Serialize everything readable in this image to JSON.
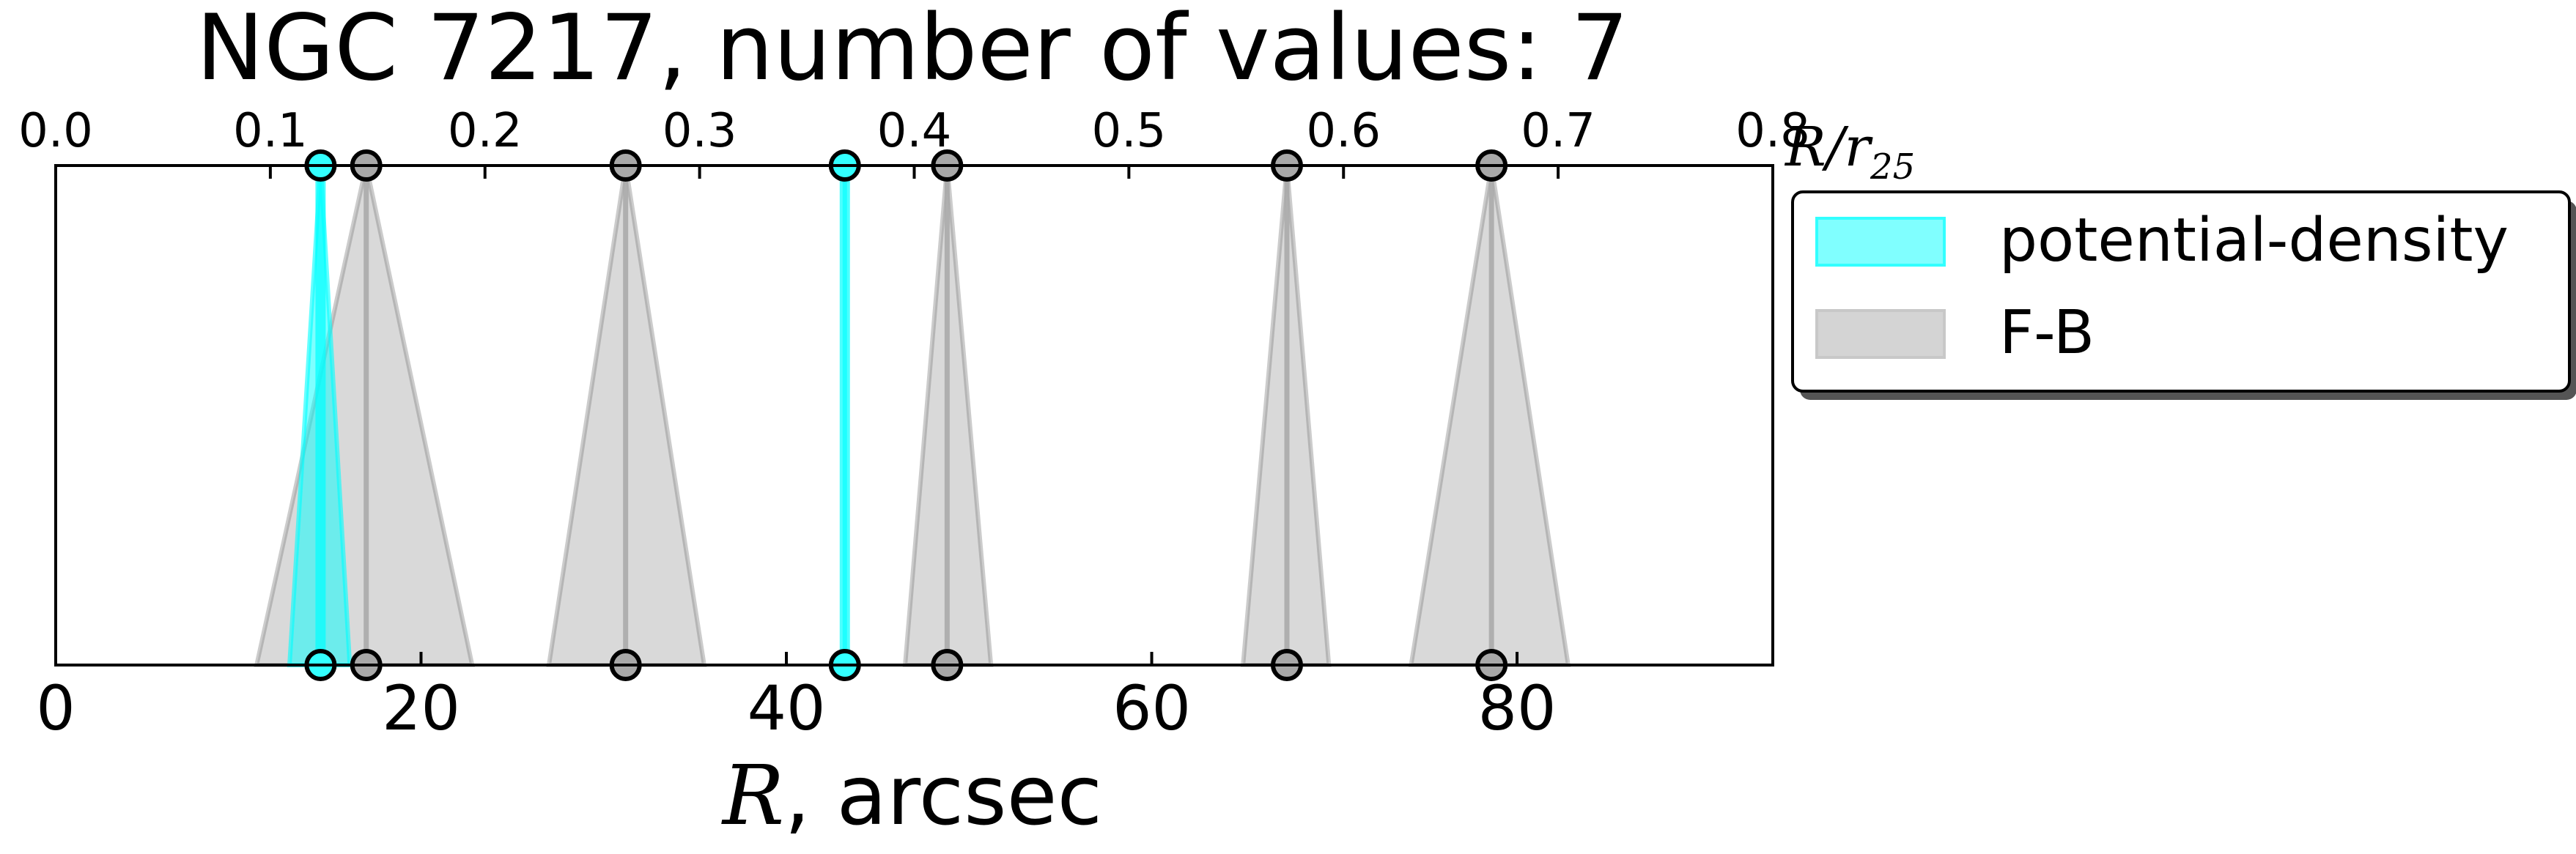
{
  "chart_data": {
    "type": "interval-markers",
    "title": "NGC 7217, number of values: 7",
    "xlabel_symbol": "R",
    "xlabel_rest": ", arcsec",
    "top_label_symbol": "R/r",
    "top_label_sub": "25",
    "xlim": [
      0,
      94
    ],
    "xticks": [
      0,
      20,
      40,
      60,
      80
    ],
    "xtick_labels": [
      "0",
      "20",
      "40",
      "60",
      "80"
    ],
    "top_xlim": [
      0,
      0.8
    ],
    "top_xticks": [
      0.0,
      0.1,
      0.2,
      0.3,
      0.4,
      0.5,
      0.6,
      0.7,
      0.8
    ],
    "top_xtick_labels": [
      "0.0",
      "0.1",
      "0.2",
      "0.3",
      "0.4",
      "0.5",
      "0.6",
      "0.7",
      "0.8"
    ],
    "legend_position": "outside right, top",
    "series": [
      {
        "name": "potential-density",
        "color": "#00ffff",
        "alpha": 0.5,
        "markers": [
          {
            "x": 14.5,
            "lo": 12.8,
            "hi": 16.1
          },
          {
            "x": 43.2,
            "lo": 43.2,
            "hi": 43.2
          }
        ]
      },
      {
        "name": "F-B",
        "color": "#808080",
        "alpha": 0.3,
        "markers": [
          {
            "x": 17.0,
            "lo": 11.0,
            "hi": 22.8
          },
          {
            "x": 31.2,
            "lo": 27.0,
            "hi": 35.5
          },
          {
            "x": 48.8,
            "lo": 46.5,
            "hi": 51.2
          },
          {
            "x": 67.4,
            "lo": 65.0,
            "hi": 69.7
          },
          {
            "x": 78.6,
            "lo": 74.2,
            "hi": 82.8
          }
        ]
      }
    ]
  }
}
